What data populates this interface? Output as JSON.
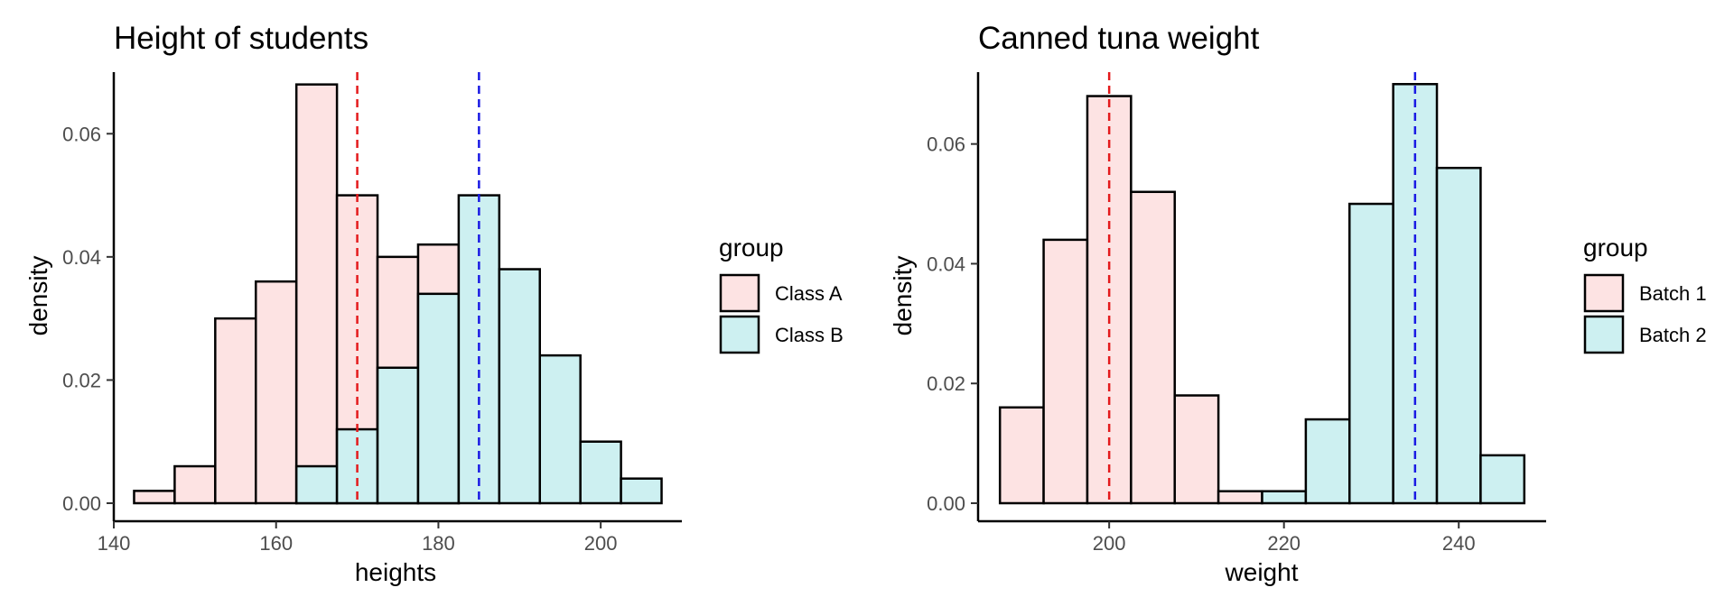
{
  "chart_data": [
    {
      "type": "histogram",
      "title": "Height of students",
      "xlabel": "heights",
      "ylabel": "density",
      "xlim": [
        140,
        210
      ],
      "ylim": [
        0,
        0.07
      ],
      "xticks": [
        140,
        160,
        180,
        200
      ],
      "xtick_labels": [
        "140",
        "160",
        "180",
        "200"
      ],
      "yticks": [
        0,
        0.02,
        0.04,
        0.06
      ],
      "ytick_labels": [
        "0.00",
        "0.02",
        "0.04",
        "0.06"
      ],
      "bin_edges": [
        142.5,
        147.5,
        152.5,
        157.5,
        162.5,
        167.5,
        172.5,
        177.5,
        182.5,
        187.5,
        192.5,
        197.5,
        202.5,
        207.5
      ],
      "series": [
        {
          "name": "Class A",
          "color": "#fde3e3",
          "values": [
            0.002,
            0.006,
            0.03,
            0.036,
            0.068,
            0.05,
            0.04,
            0.042,
            0,
            0,
            0,
            0,
            0
          ]
        },
        {
          "name": "Class B",
          "color": "#cdf0f1",
          "values": [
            0,
            0,
            0,
            0,
            0.006,
            0.012,
            0.022,
            0.034,
            0.05,
            0.038,
            0.024,
            0.01,
            0.004
          ]
        }
      ],
      "vlines": [
        {
          "x": 170,
          "color": "#e41a1c"
        },
        {
          "x": 185,
          "color": "#1a1ae4"
        }
      ],
      "legend_title": "group",
      "legend_position": "right",
      "grid": false
    },
    {
      "type": "histogram",
      "title": "Canned tuna weight",
      "xlabel": "weight",
      "ylabel": "density",
      "xlim": [
        185,
        250
      ],
      "ylim": [
        0,
        0.072
      ],
      "xticks": [
        200,
        220,
        240
      ],
      "xtick_labels": [
        "200",
        "220",
        "240"
      ],
      "yticks": [
        0,
        0.02,
        0.04,
        0.06
      ],
      "ytick_labels": [
        "0.00",
        "0.02",
        "0.04",
        "0.06"
      ],
      "bin_edges": [
        187.5,
        192.5,
        197.5,
        202.5,
        207.5,
        212.5,
        217.5,
        222.5,
        227.5,
        232.5,
        237.5,
        242.5,
        247.5
      ],
      "series": [
        {
          "name": "Batch 1",
          "color": "#fde3e3",
          "values": [
            0.016,
            0.044,
            0.068,
            0.052,
            0.018,
            0.002,
            0,
            0,
            0,
            0,
            0,
            0
          ]
        },
        {
          "name": "Batch 2",
          "color": "#cdf0f1",
          "values": [
            0,
            0,
            0,
            0,
            0,
            0,
            0.002,
            0.014,
            0.05,
            0.07,
            0.056,
            0.008
          ]
        }
      ],
      "vlines": [
        {
          "x": 200,
          "color": "#e41a1c"
        },
        {
          "x": 235,
          "color": "#1a1ae4"
        }
      ],
      "legend_title": "group",
      "legend_position": "right",
      "grid": false
    }
  ]
}
